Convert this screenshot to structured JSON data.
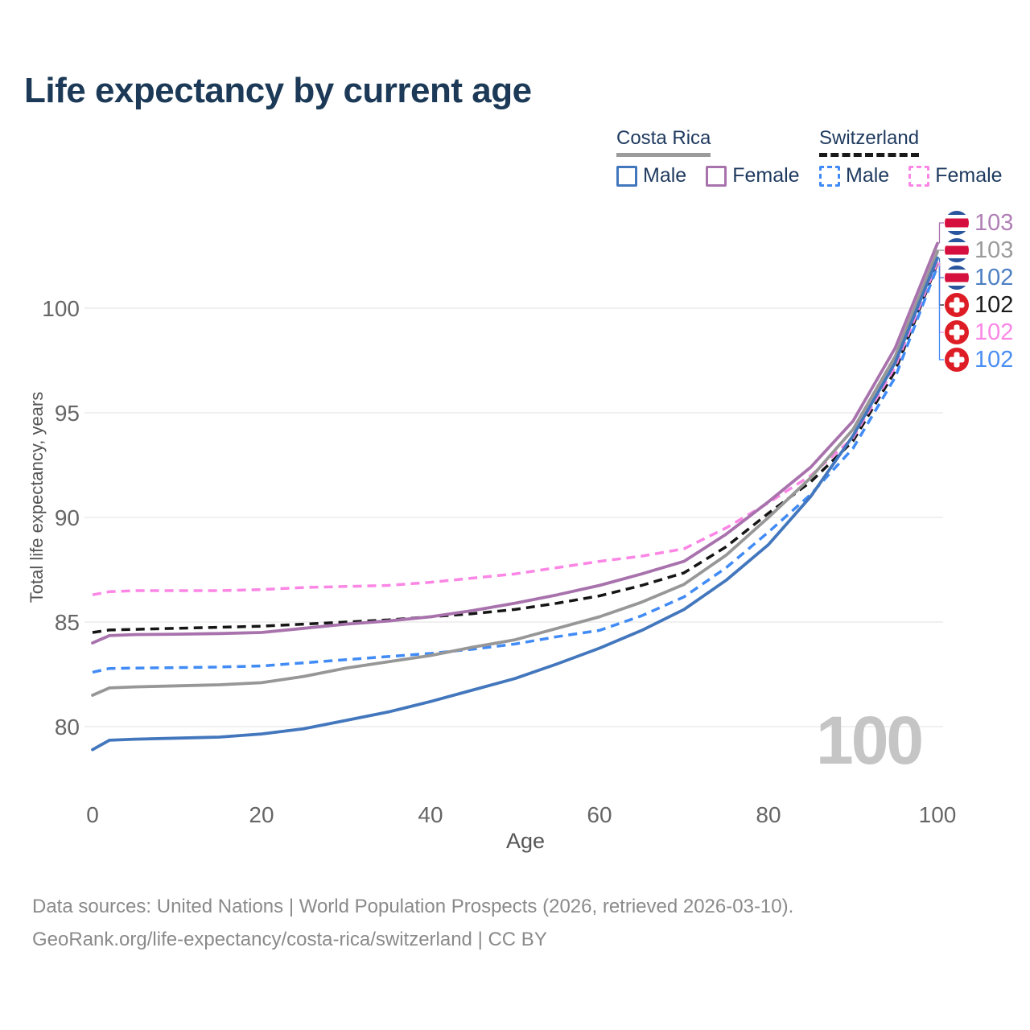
{
  "title": "Life expectancy by current age",
  "legend": {
    "costa_rica": {
      "title": "Costa Rica",
      "male": "Male",
      "female": "Female"
    },
    "switzerland": {
      "title": "Switzerland",
      "male": "Male",
      "female": "Female"
    }
  },
  "colors": {
    "title_text": "#1c3a57",
    "legend_text": "#1e3a5f",
    "cr_male": "#4377bd",
    "cr_female": "#a872ad",
    "cr_total": "#979797",
    "ch_male": "#418bf6",
    "ch_female": "#fb86e5",
    "ch_total": "#151515",
    "cr_underline": "#9b9b9b",
    "ch_underline": "#1a1a1a",
    "gridline": "#ebebeb",
    "tick_text": "#666666",
    "watermark": "#c5c5c5",
    "footer_text": "#8a8a8a"
  },
  "chart_data": {
    "type": "line",
    "title": "Life expectancy by current age",
    "xlabel": "Age",
    "ylabel": "Total life expectancy, years",
    "x_ticks": [
      0,
      20,
      40,
      60,
      80,
      100
    ],
    "y_ticks": [
      80,
      85,
      90,
      95,
      100
    ],
    "xlim": [
      0,
      100
    ],
    "ylim": [
      78,
      104
    ],
    "grid": "horizontal",
    "x": [
      0,
      2,
      5,
      10,
      15,
      20,
      25,
      30,
      35,
      40,
      45,
      50,
      55,
      60,
      65,
      70,
      75,
      80,
      85,
      90,
      95,
      100
    ],
    "series": [
      {
        "name": "Switzerland Total",
        "country": "Switzerland",
        "group": "Total",
        "style": "dashed",
        "color": "#151515",
        "values": [
          84.5,
          84.62,
          84.65,
          84.7,
          84.75,
          84.8,
          84.9,
          85.0,
          85.1,
          85.25,
          85.4,
          85.6,
          85.9,
          86.25,
          86.75,
          87.35,
          88.6,
          90.2,
          91.7,
          93.65,
          97.0,
          102.15
        ]
      },
      {
        "name": "Switzerland Female",
        "country": "Switzerland",
        "group": "Female",
        "style": "dashed",
        "color": "#fb86e5",
        "values": [
          86.3,
          86.45,
          86.5,
          86.5,
          86.5,
          86.55,
          86.65,
          86.7,
          86.75,
          86.9,
          87.1,
          87.3,
          87.6,
          87.9,
          88.15,
          88.5,
          89.5,
          90.7,
          92.0,
          93.8,
          97.2,
          102.2
        ]
      },
      {
        "name": "Switzerland Male",
        "country": "Switzerland",
        "group": "Male",
        "style": "dashed",
        "color": "#418bf6",
        "values": [
          82.6,
          82.78,
          82.8,
          82.82,
          82.85,
          82.9,
          83.05,
          83.2,
          83.35,
          83.5,
          83.7,
          83.95,
          84.3,
          84.6,
          85.3,
          86.2,
          87.6,
          89.3,
          91.1,
          93.3,
          96.7,
          102.0
        ]
      },
      {
        "name": "Costa Rica Total",
        "country": "Costa Rica",
        "group": "Total",
        "style": "solid",
        "color": "#979797",
        "values": [
          81.5,
          81.85,
          81.9,
          81.95,
          82.0,
          82.1,
          82.4,
          82.8,
          83.1,
          83.4,
          83.8,
          84.15,
          84.7,
          85.25,
          85.95,
          86.8,
          88.2,
          90.0,
          91.9,
          94.2,
          97.7,
          102.7
        ]
      },
      {
        "name": "Costa Rica Female",
        "country": "Costa Rica",
        "group": "Female",
        "style": "solid",
        "color": "#a872ad",
        "values": [
          84.0,
          84.35,
          84.4,
          84.42,
          84.45,
          84.5,
          84.7,
          84.9,
          85.05,
          85.25,
          85.55,
          85.9,
          86.3,
          86.75,
          87.3,
          87.9,
          89.2,
          90.75,
          92.4,
          94.6,
          98.1,
          103.1
        ]
      },
      {
        "name": "Costa Rica Male",
        "country": "Costa Rica",
        "group": "Male",
        "style": "solid",
        "color": "#4377bd",
        "values": [
          78.9,
          79.35,
          79.4,
          79.45,
          79.5,
          79.65,
          79.9,
          80.3,
          80.7,
          81.2,
          81.75,
          82.3,
          83.0,
          83.75,
          84.6,
          85.6,
          87.0,
          88.7,
          91.0,
          93.9,
          97.4,
          102.4
        ]
      }
    ],
    "end_labels": [
      {
        "value": "103",
        "series": "Costa Rica Female",
        "flag": "costa-rica",
        "color": "#b07fb5"
      },
      {
        "value": "103",
        "series": "Costa Rica Total",
        "flag": "costa-rica",
        "color": "#9a9a9a"
      },
      {
        "value": "102",
        "series": "Costa Rica Male",
        "flag": "costa-rica",
        "color": "#4d7fc3"
      },
      {
        "value": "102",
        "series": "Switzerland Total",
        "flag": "switzerland",
        "color": "#1a1a1a"
      },
      {
        "value": "102",
        "series": "Switzerland Female",
        "flag": "switzerland",
        "color": "#fb86e5"
      },
      {
        "value": "102",
        "series": "Switzerland Male",
        "flag": "switzerland",
        "color": "#4b8ef2"
      }
    ],
    "watermark": "100",
    "legend_position": "top-right"
  },
  "footer": {
    "line1": "Data sources: United Nations | World Population Prospects (2026, retrieved 2026-03-10).",
    "line2": "GeoRank.org/life-expectancy/costa-rica/switzerland | CC BY"
  }
}
